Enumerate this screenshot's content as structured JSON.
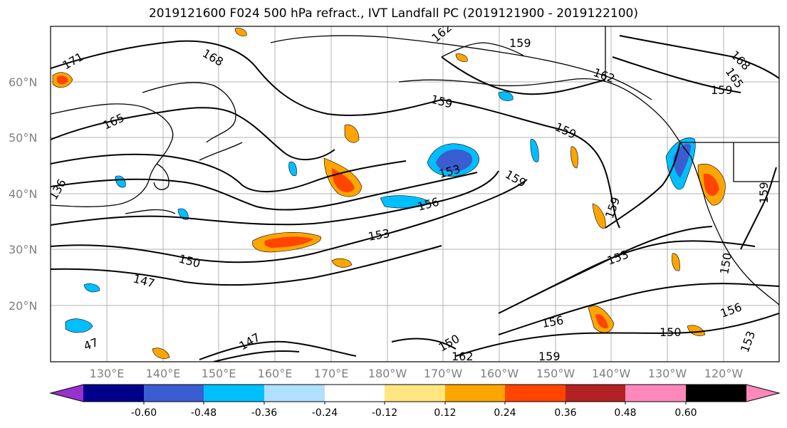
{
  "title": "2019121600 F024 500 hPa refract., IVT Landfall PC (2019121900 - 2019122100)",
  "map": {
    "lat_labels": [
      "60°N",
      "50°N",
      "40°N",
      "30°N",
      "20°N"
    ],
    "lon_labels": [
      "130°E",
      "140°E",
      "150°E",
      "160°E",
      "170°E",
      "180°W",
      "170°W",
      "160°W",
      "150°W",
      "140°W",
      "130°W",
      "120°W"
    ],
    "contour_labels": [
      "171",
      "168",
      "162",
      "159",
      "165",
      "162",
      "168",
      "165",
      "159",
      "159",
      "159",
      "153",
      "159",
      "156",
      "136",
      "153",
      "159",
      "150",
      "153",
      "147",
      "150",
      "156",
      "156",
      "150",
      "153",
      "159",
      "162",
      "159",
      "147",
      "150",
      "47"
    ],
    "gridlines": true,
    "coastlines": true
  },
  "colorbar": {
    "colors": [
      "#9932cc",
      "#00008b",
      "#3a5ed2",
      "#00bfff",
      "#b0e0ff",
      "#ffffff",
      "#ffe680",
      "#ffa500",
      "#ff4500",
      "#b22222",
      "#ff88bb"
    ],
    "tick_labels": [
      "-0.60",
      "-0.48",
      "-0.36",
      "-0.24",
      "-0.12",
      "0.12",
      "0.24",
      "0.36",
      "0.48",
      "0.60"
    ]
  }
}
